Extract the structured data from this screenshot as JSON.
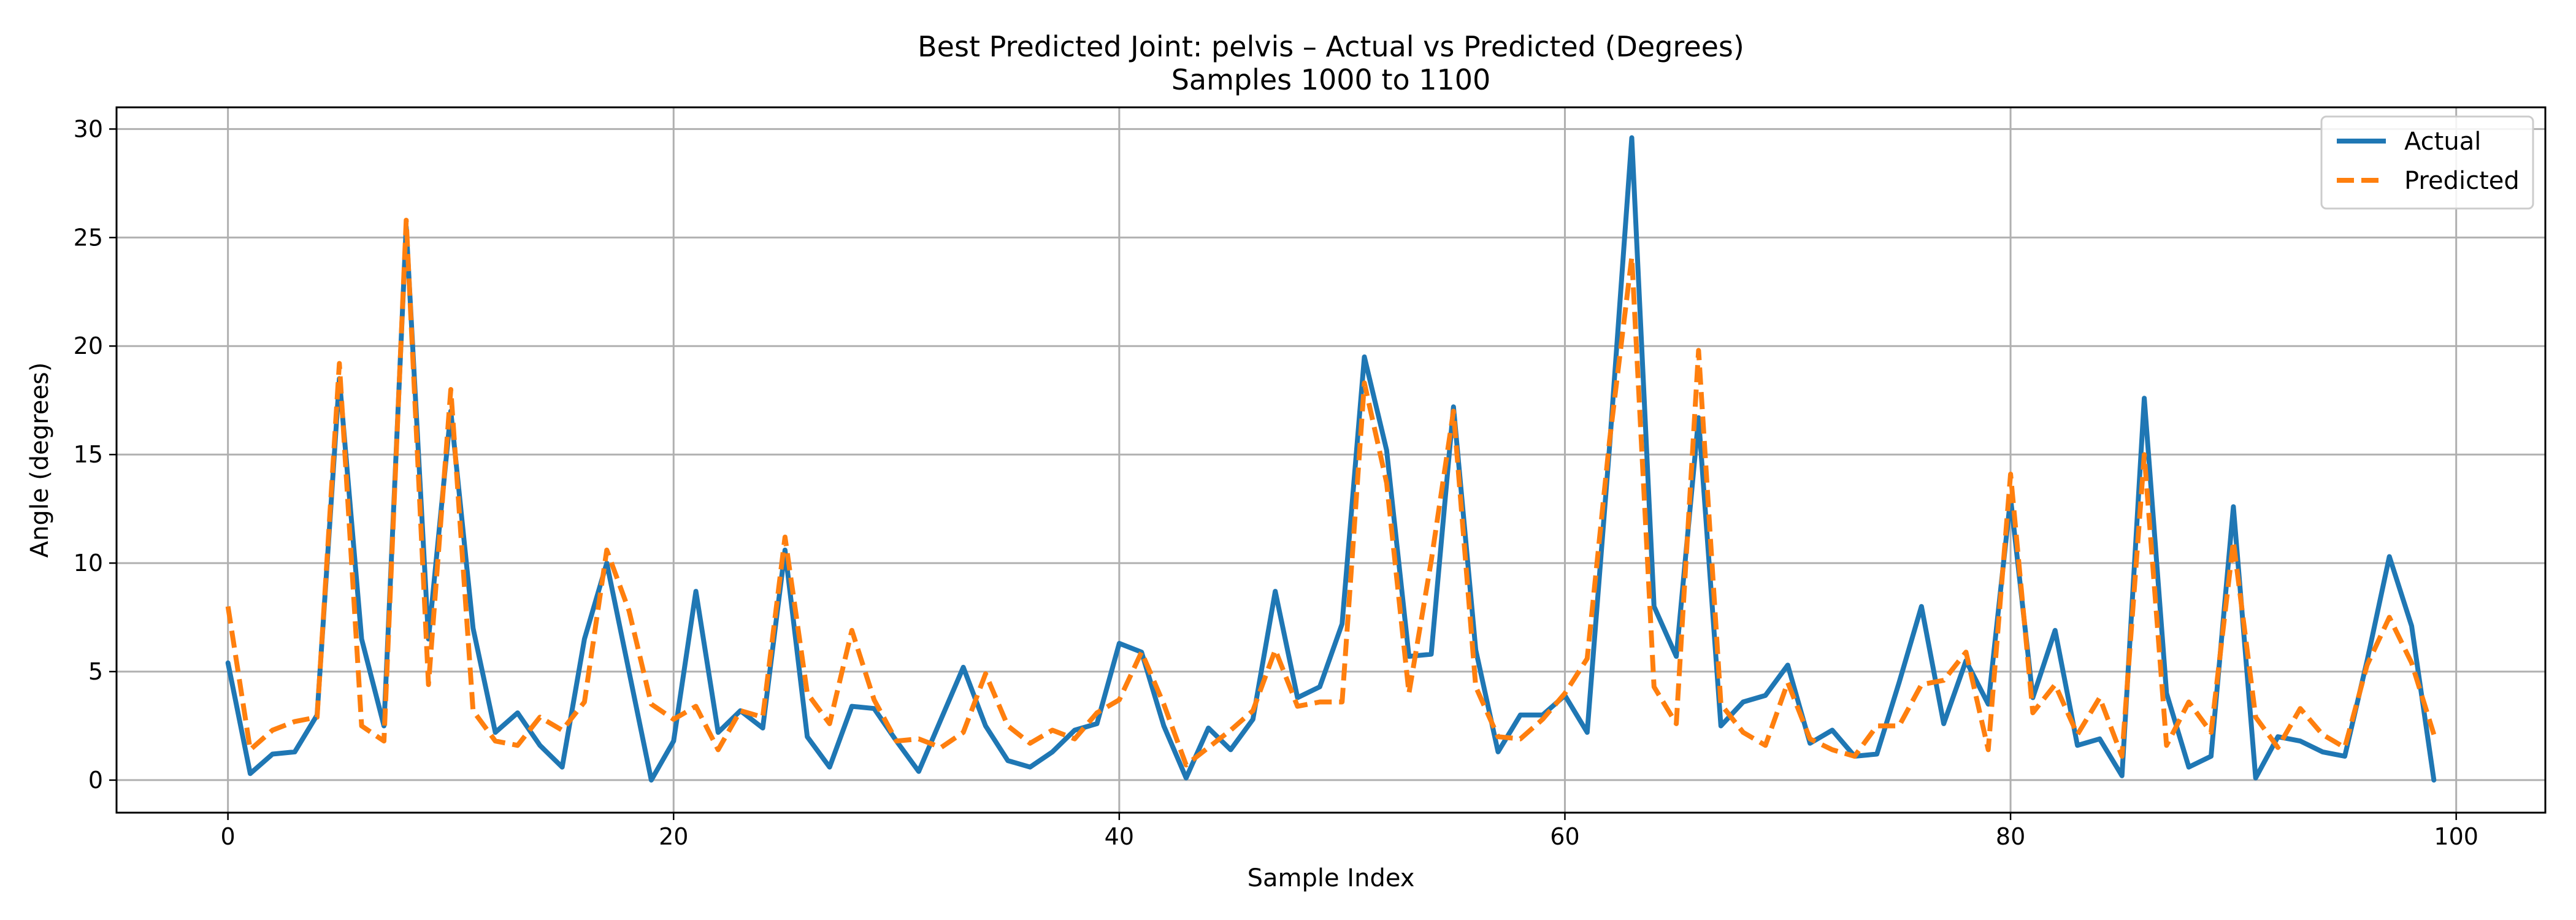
{
  "chart_data": {
    "type": "line",
    "title": "Best Predicted Joint: pelvis – Actual vs Predicted (Degrees)",
    "subtitle": "Samples 1000 to 1100",
    "xlabel": "Sample Index",
    "ylabel": "Angle (degrees)",
    "xlim": [
      -5,
      104
    ],
    "ylim": [
      -1.5,
      31
    ],
    "xticks": [
      0,
      20,
      40,
      60,
      80,
      100
    ],
    "yticks": [
      0,
      5,
      10,
      15,
      20,
      25,
      30
    ],
    "grid": true,
    "legend_position": "top-right",
    "series": [
      {
        "name": "Actual",
        "color": "#1f77b4",
        "style": "solid",
        "values": [
          5.4,
          0.3,
          1.2,
          1.3,
          3.0,
          18.5,
          6.5,
          2.5,
          25.5,
          6.5,
          17.0,
          7.0,
          2.2,
          3.1,
          1.6,
          0.6,
          6.5,
          10.0,
          5.0,
          0.0,
          1.8,
          8.7,
          2.2,
          3.2,
          2.4,
          10.6,
          2.0,
          0.6,
          3.4,
          3.3,
          1.8,
          0.4,
          2.8,
          5.2,
          2.5,
          0.9,
          0.6,
          1.3,
          2.3,
          2.6,
          6.3,
          5.9,
          2.5,
          0.1,
          2.4,
          1.4,
          2.8,
          8.7,
          3.8,
          4.3,
          7.2,
          19.5,
          15.2,
          5.7,
          5.8,
          17.2,
          6.0,
          1.3,
          3.0,
          3.0,
          3.9,
          2.2,
          15.3,
          29.6,
          8.0,
          5.7,
          16.7,
          2.5,
          3.6,
          3.9,
          5.3,
          1.7,
          2.3,
          1.1,
          1.2,
          4.5,
          8.0,
          2.6,
          5.5,
          3.5,
          13.0,
          3.8,
          6.9,
          1.6,
          1.9,
          0.2,
          17.6,
          4.0,
          0.6,
          1.1,
          12.6,
          0.1,
          2.0,
          1.8,
          1.3,
          1.1,
          5.5,
          10.3,
          7.1,
          0.0
        ]
      },
      {
        "name": "Predicted",
        "color": "#ff7f0e",
        "style": "dashed",
        "values": [
          8.0,
          1.4,
          2.3,
          2.7,
          2.9,
          19.2,
          2.5,
          1.8,
          25.8,
          4.4,
          18.0,
          3.2,
          1.8,
          1.6,
          2.9,
          2.3,
          3.6,
          10.6,
          7.8,
          3.5,
          2.8,
          3.4,
          1.4,
          3.2,
          2.9,
          11.2,
          4.0,
          2.6,
          6.9,
          3.7,
          1.8,
          1.9,
          1.5,
          2.2,
          4.9,
          2.5,
          1.7,
          2.3,
          1.9,
          3.1,
          3.7,
          5.9,
          3.5,
          0.7,
          1.5,
          2.3,
          3.2,
          6.0,
          3.4,
          3.6,
          3.6,
          18.3,
          13.7,
          4.0,
          10.1,
          17.0,
          4.3,
          2.0,
          1.9,
          2.8,
          4.0,
          5.6,
          15.6,
          24.1,
          4.3,
          2.6,
          19.8,
          3.5,
          2.2,
          1.6,
          4.5,
          1.9,
          1.4,
          1.1,
          2.5,
          2.5,
          4.4,
          4.6,
          5.9,
          1.4,
          14.1,
          3.1,
          4.4,
          2.1,
          3.8,
          1.1,
          15.0,
          1.6,
          3.6,
          2.2,
          11.0,
          2.9,
          1.5,
          3.3,
          2.1,
          1.5,
          5.3,
          7.5,
          5.4,
          2.1
        ]
      }
    ]
  }
}
